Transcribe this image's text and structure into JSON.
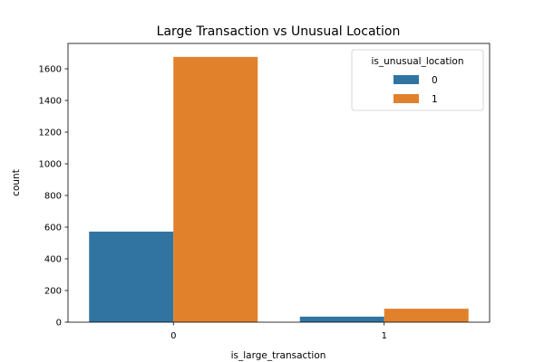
{
  "chart_data": {
    "type": "bar",
    "title": "Large Transaction vs Unusual Location",
    "xlabel": "is_large_transaction",
    "ylabel": "count",
    "categories": [
      "0",
      "1"
    ],
    "series": [
      {
        "name": "0",
        "values": [
          572,
          35
        ],
        "color": "#3274a1"
      },
      {
        "name": "1",
        "values": [
          1675,
          85
        ],
        "color": "#e1812c"
      }
    ],
    "ylim": [
      0,
      1760
    ],
    "yticks": [
      0,
      200,
      400,
      600,
      800,
      1000,
      1200,
      1400,
      1600
    ],
    "legend": {
      "title": "is_unusual_location",
      "placement": "top-right"
    },
    "grid": false
  }
}
